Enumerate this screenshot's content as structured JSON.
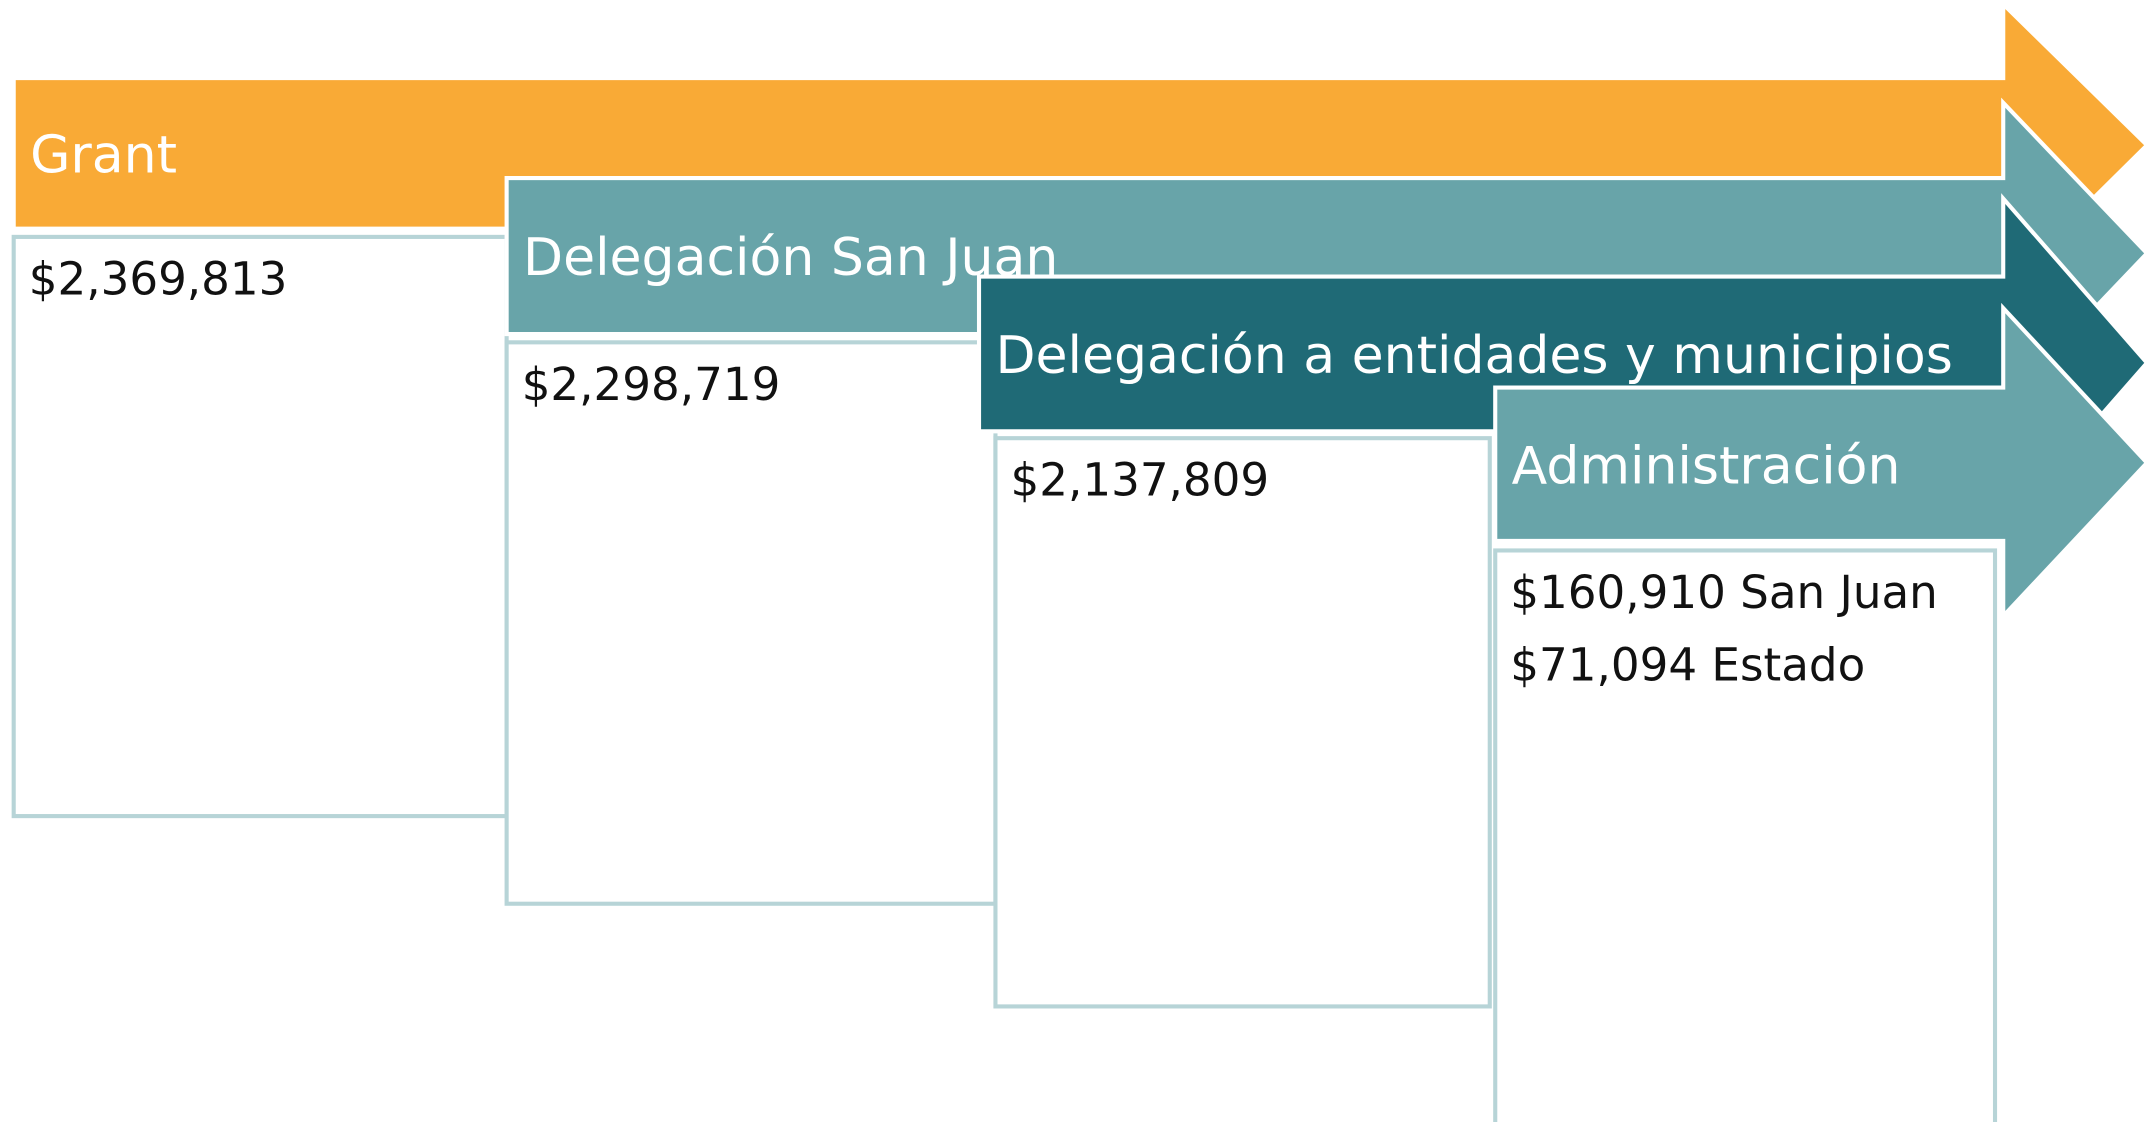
{
  "steps": [
    {
      "title": "Grant",
      "lines": [
        "$2,369,813"
      ]
    },
    {
      "title": "Delegación San Juan",
      "lines": [
        "$2,298,719"
      ]
    },
    {
      "title": "Delegación a entidades y municipios",
      "lines": [
        "$2,137,809"
      ]
    },
    {
      "title": "Administración",
      "lines": [
        "$160,910 San Juan",
        "$71,094 Estado"
      ]
    }
  ]
}
